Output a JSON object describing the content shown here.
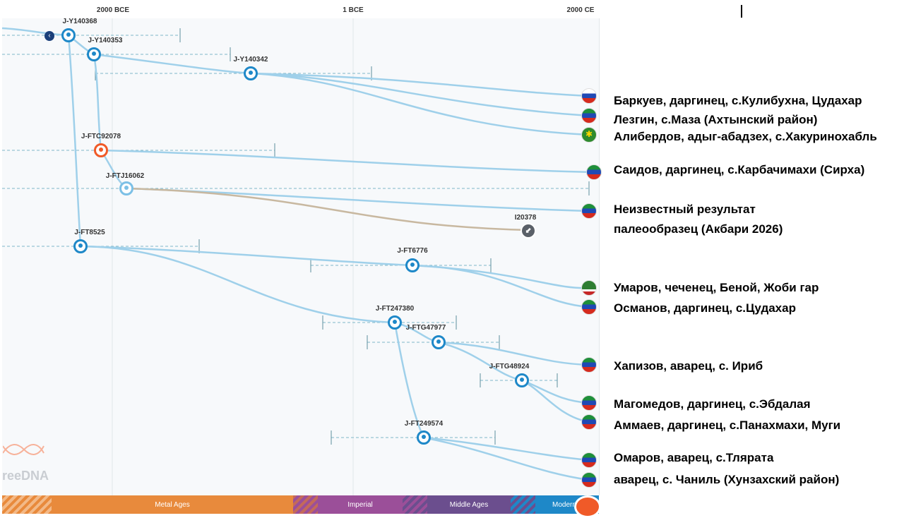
{
  "axis": {
    "left": "2000 BCE",
    "mid": "1 BCE",
    "right": "2000 CE"
  },
  "nodes": [
    {
      "id": "n1",
      "label": "J-Y140368"
    },
    {
      "id": "n2",
      "label": "J-Y140353"
    },
    {
      "id": "n3",
      "label": "J-Y140342"
    },
    {
      "id": "n4",
      "label": "J-FTC92078"
    },
    {
      "id": "n5",
      "label": "J-FTJ16062"
    },
    {
      "id": "n6",
      "label": "J-FT8525"
    },
    {
      "id": "n7",
      "label": "J-FT6776"
    },
    {
      "id": "n8",
      "label": "J-FT247380"
    },
    {
      "id": "n9",
      "label": "J-FTG47977"
    },
    {
      "id": "n10",
      "label": "J-FTG48924"
    },
    {
      "id": "n11",
      "label": "J-FT249574"
    }
  ],
  "sample": {
    "label": "I20378"
  },
  "leaves": [
    "Баркуев, даргинец, с.Кулибухна, Цудахар",
    "Лезгин, с.Маза (Ахтынский район)",
    "Алибердов, адыг-абадзех, с.Хакуринохабль",
    "Саидов, даргинец, с.Карбачимахи (Сирха)",
    "Неизвестный результат",
    "палеообразец (Акбари 2026)",
    "Умаров, чеченец, Беной, Жоби гар",
    "Османов, даргинец, с.Цудахар",
    "Хапизов, аварец, с. Ириб",
    "Магомедов, даргинец, с.Эбдалая",
    "Аммаев, даргинец, с.Панахмахи, Муги",
    "Омаров, аварец, с.Тлярата",
    "аварец, с. Чаниль (Хунзахский район)"
  ],
  "timeline": [
    "Metal Ages",
    "Imperial",
    "Middle Ages",
    "Modern"
  ],
  "logo": "reeDNA",
  "colors": {
    "accent": "#1e88c8",
    "line": "#9fd0ea",
    "orange": "#f05a28",
    "metal": "#e88a3c",
    "imperial": "#9b4f99",
    "middle": "#6b4e8e",
    "modern": "#1e88c8"
  }
}
